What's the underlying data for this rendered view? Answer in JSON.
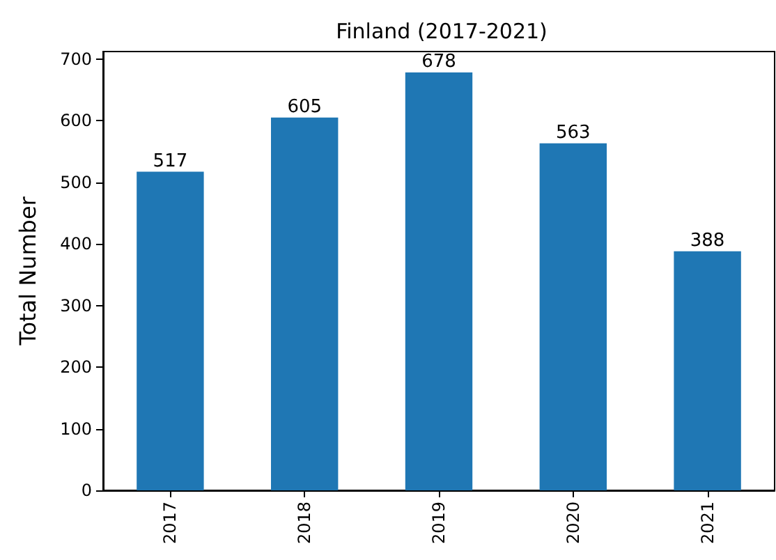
{
  "chart_data": {
    "type": "bar",
    "title": "Finland (2017-2021)",
    "ylabel": "Total Number",
    "categories": [
      "2017",
      "2018",
      "2019",
      "2020",
      "2021"
    ],
    "values": [
      517,
      605,
      678,
      563,
      388
    ],
    "color": "#1f77b4",
    "ylim": [
      0,
      712
    ],
    "yticks": [
      0,
      100,
      200,
      300,
      400,
      500,
      600,
      700
    ],
    "data_labels": true,
    "grid": false
  }
}
